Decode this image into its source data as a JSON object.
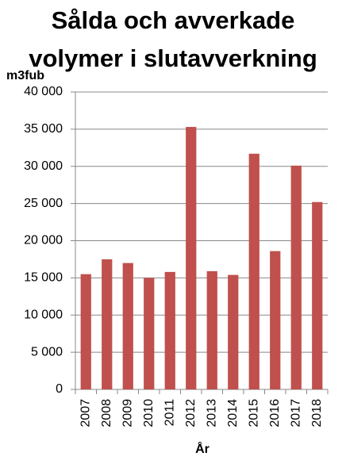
{
  "chart_data": {
    "type": "bar",
    "title": "Sålda och avverkade volymer i slutavverkning",
    "y_label": "m3fub",
    "x_label": "År",
    "categories": [
      "2007",
      "2008",
      "2009",
      "2010",
      "2011",
      "2012",
      "2013",
      "2014",
      "2015",
      "2016",
      "2017",
      "2018"
    ],
    "values": [
      15500,
      17500,
      17000,
      15000,
      15800,
      35300,
      15900,
      15400,
      31700,
      18600,
      30100,
      25200
    ],
    "color": "#c0504d",
    "ylim": [
      0,
      40000
    ],
    "yticks": [
      0,
      {
        "value": 5000,
        "label": "5 000"
      },
      {
        "value": 10000,
        "label": "10 000"
      },
      {
        "value": 15000,
        "label": "15 000"
      },
      {
        "value": 20000,
        "label": "20 000"
      },
      {
        "value": 25000,
        "label": "25 000"
      },
      {
        "value": 30000,
        "label": "30 000"
      },
      {
        "value": 35000,
        "label": "35 000"
      },
      {
        "value": 40000,
        "label": "40 000"
      }
    ],
    "grid": true
  }
}
